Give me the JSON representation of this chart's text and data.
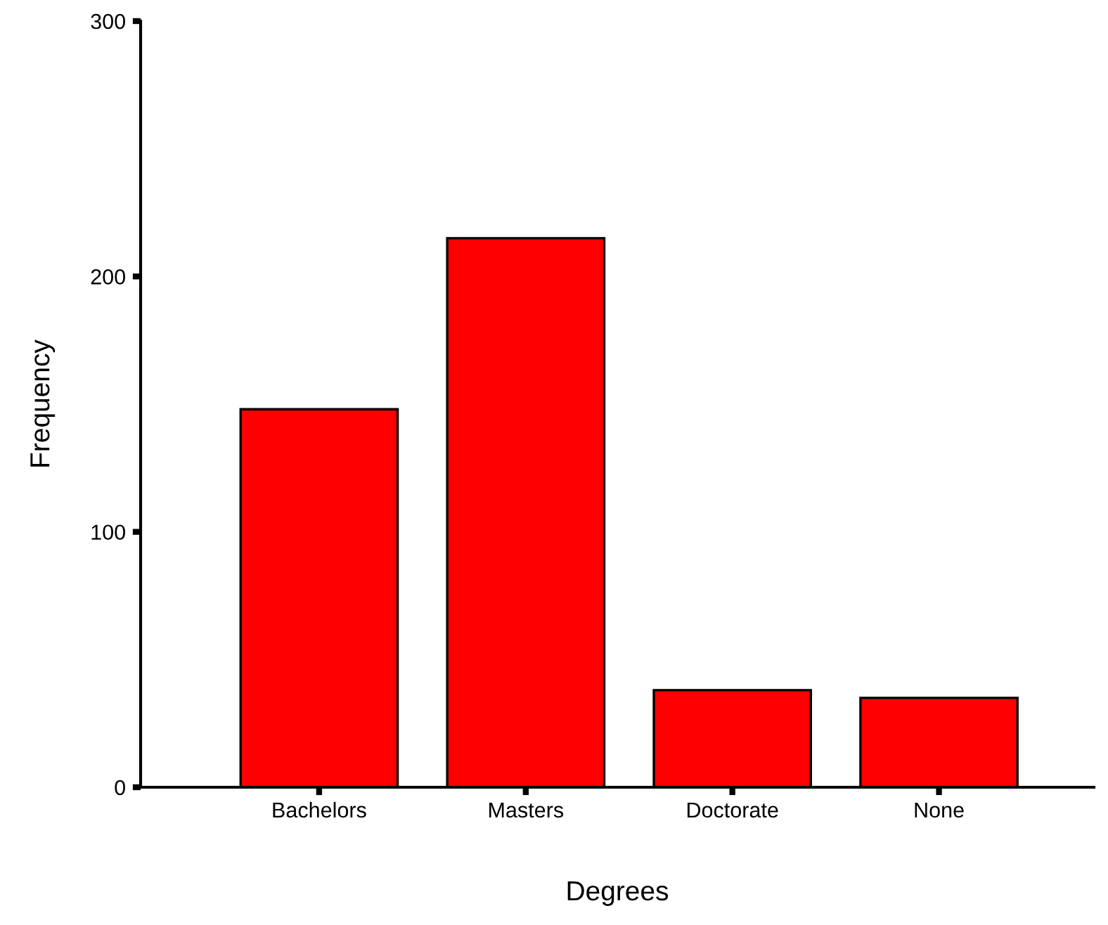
{
  "chart_data": {
    "type": "bar",
    "xlabel": "Degrees",
    "ylabel": "Frequency",
    "categories": [
      "Bachelors",
      "Masters",
      "Doctorate",
      "None"
    ],
    "values": [
      148,
      215,
      38,
      35
    ],
    "color": "#ff0000",
    "ylim": [
      0,
      300
    ],
    "yticks": [
      0,
      100,
      200,
      300
    ],
    "grid": false,
    "legend": false
  }
}
